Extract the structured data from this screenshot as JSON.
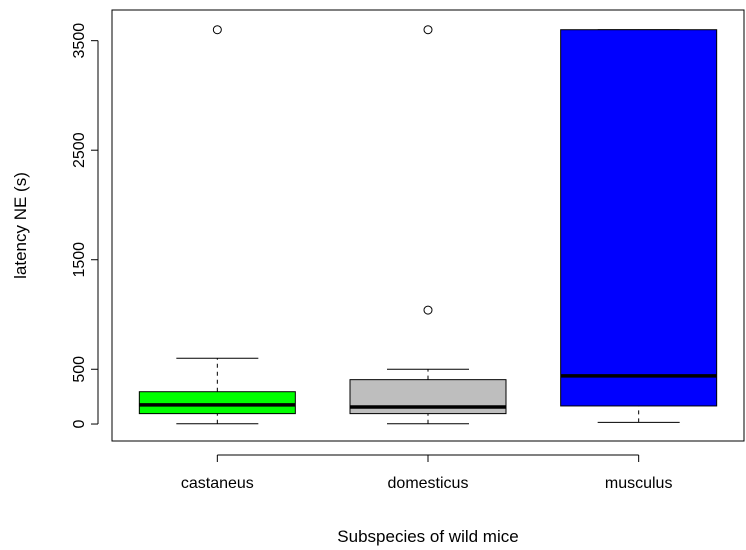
{
  "chart_data": {
    "type": "boxplot",
    "title": "",
    "xlabel": "Subspecies of wild mice",
    "ylabel": "latency NE (s)",
    "ylim": [
      -155,
      3780
    ],
    "y_ticks": [
      0,
      500,
      1500,
      2500,
      3500
    ],
    "grid": false,
    "legend": "none",
    "categories": [
      "castaneus",
      "domesticus",
      "musculus"
    ],
    "boxes": [
      {
        "name": "castaneus",
        "color": "#00ff00",
        "whisker_low": 2,
        "q1": 95,
        "median": 175,
        "q3": 295,
        "whisker_high": 600,
        "outliers": [
          3600
        ]
      },
      {
        "name": "domesticus",
        "color": "#bebebe",
        "whisker_low": 2,
        "q1": 95,
        "median": 155,
        "q3": 405,
        "whisker_high": 500,
        "outliers": [
          1040,
          3600
        ]
      },
      {
        "name": "musculus",
        "color": "#0000ff",
        "whisker_low": 15,
        "q1": 165,
        "median": 440,
        "q3": 3600,
        "whisker_high": 3600,
        "outliers": []
      }
    ]
  }
}
